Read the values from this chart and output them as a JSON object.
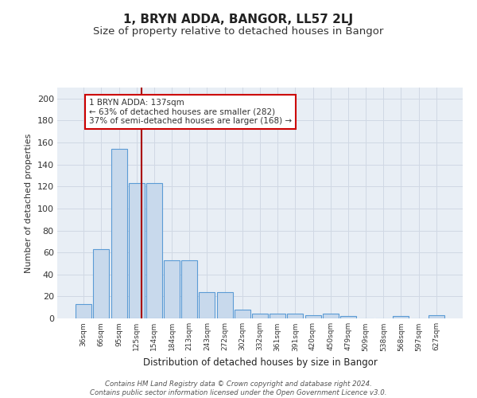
{
  "title": "1, BRYN ADDA, BANGOR, LL57 2LJ",
  "subtitle": "Size of property relative to detached houses in Bangor",
  "xlabel": "Distribution of detached houses by size in Bangor",
  "ylabel": "Number of detached properties",
  "categories": [
    "36sqm",
    "66sqm",
    "95sqm",
    "125sqm",
    "154sqm",
    "184sqm",
    "213sqm",
    "243sqm",
    "272sqm",
    "302sqm",
    "332sqm",
    "361sqm",
    "391sqm",
    "420sqm",
    "450sqm",
    "479sqm",
    "509sqm",
    "538sqm",
    "568sqm",
    "597sqm",
    "627sqm"
  ],
  "values": [
    13,
    63,
    154,
    123,
    123,
    53,
    53,
    24,
    24,
    8,
    4,
    4,
    4,
    3,
    4,
    2,
    0,
    0,
    2,
    0,
    3
  ],
  "bar_color": "#c8d9ec",
  "bar_edge_color": "#5b9bd5",
  "red_line_x": 3.3,
  "annotation_text": "1 BRYN ADDA: 137sqm\n← 63% of detached houses are smaller (282)\n37% of semi-detached houses are larger (168) →",
  "annotation_box_color": "#ffffff",
  "annotation_box_edge": "#cc0000",
  "red_line_color": "#aa0000",
  "ylim": [
    0,
    210
  ],
  "yticks": [
    0,
    20,
    40,
    60,
    80,
    100,
    120,
    140,
    160,
    180,
    200
  ],
  "background_color": "#e8eef5",
  "grid_color": "#d0d8e4",
  "footer": "Contains HM Land Registry data © Crown copyright and database right 2024.\nContains public sector information licensed under the Open Government Licence v3.0.",
  "title_fontsize": 11,
  "subtitle_fontsize": 9.5
}
